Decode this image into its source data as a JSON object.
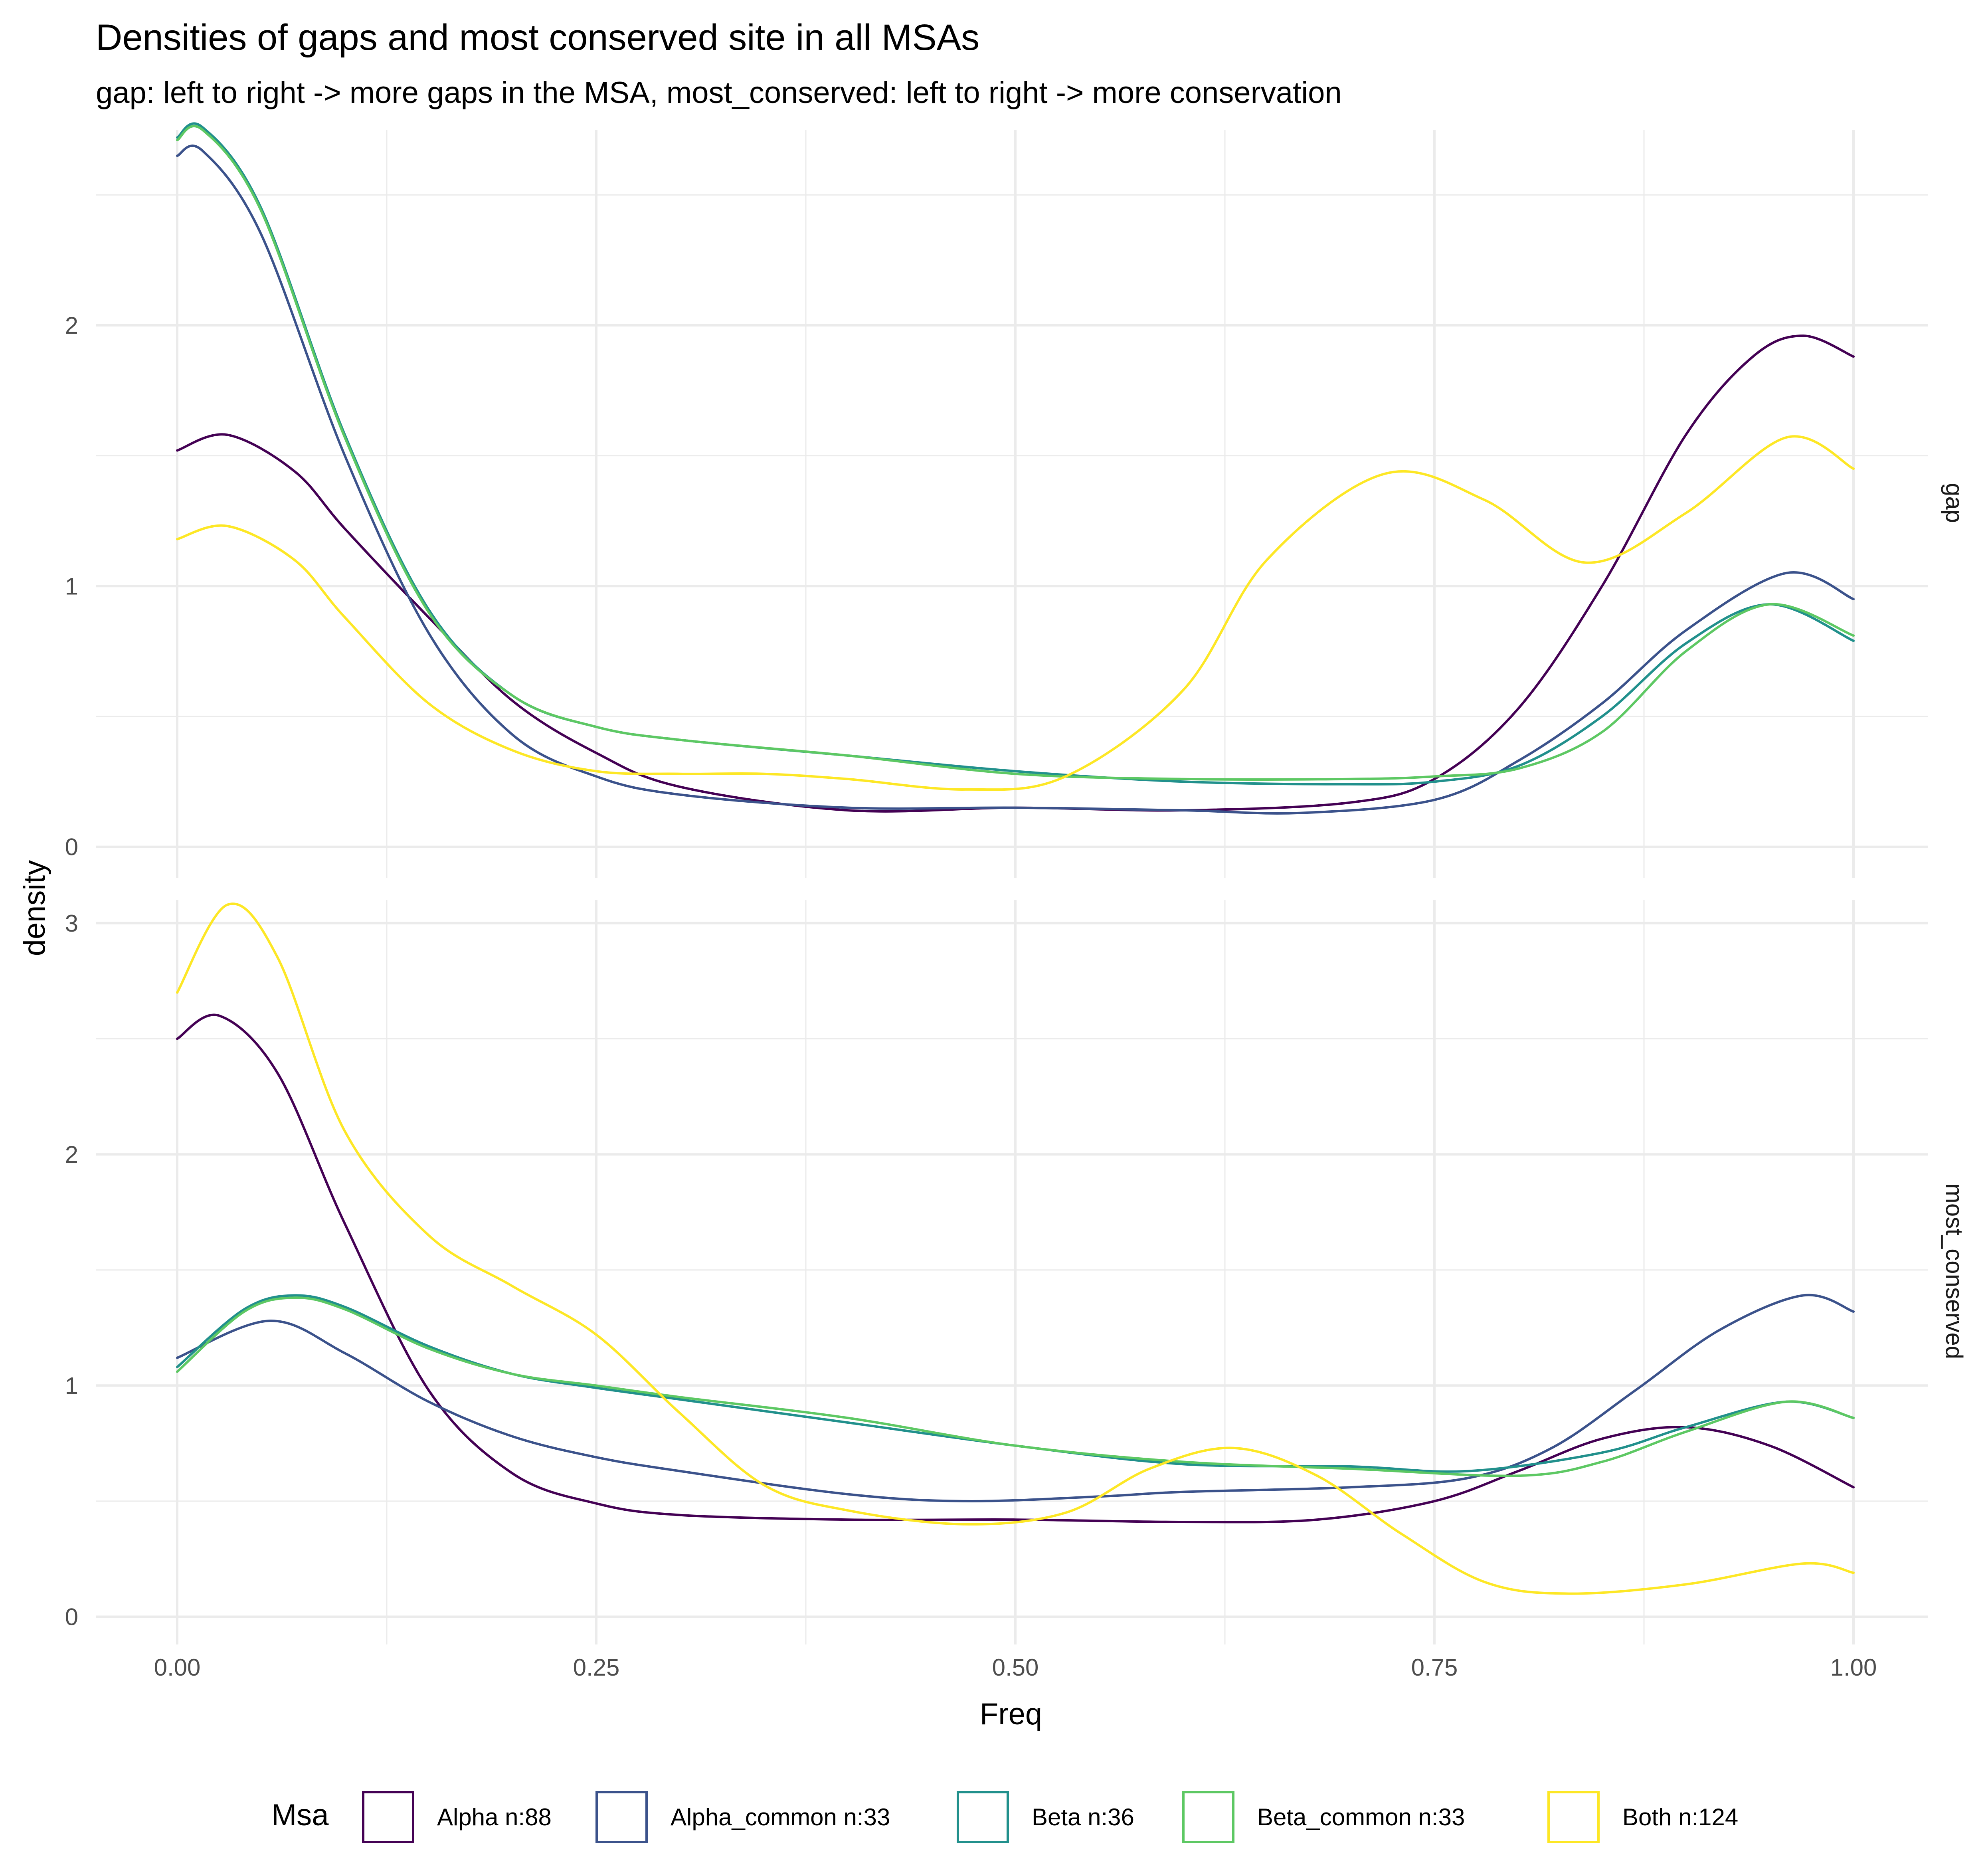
{
  "chart_data": {
    "type": "line",
    "title": "Densities of gaps and most conserved site in all MSAs",
    "subtitle": "gap: left to right -> more gaps in the MSA, most_conserved: left to right -> more conservation",
    "xlabel": "Freq",
    "ylabel": "density",
    "xlim": [
      0,
      1
    ],
    "x_ticks": [
      "0.00",
      "0.25",
      "0.50",
      "0.75",
      "1.00"
    ],
    "grid": true,
    "legend": {
      "title": "Msa",
      "position": "bottom",
      "entries": [
        "Alpha n:88",
        "Alpha_common n:33",
        "Beta n:36",
        "Beta_common n:33",
        "Both n:124"
      ]
    },
    "colors": {
      "Alpha n:88": "#440154",
      "Alpha_common n:33": "#3b528b",
      "Beta n:36": "#21908c",
      "Beta_common n:33": "#5dc863",
      "Both n:124": "#fde725"
    },
    "panels": [
      {
        "strip": "gap",
        "ylim": [
          -0.12,
          2.75
        ],
        "y_ticks": [
          0,
          1,
          2
        ],
        "series": [
          {
            "name": "Alpha n:88",
            "x": [
              0,
              0.03,
              0.07,
              0.1,
              0.15,
              0.2,
              0.25,
              0.3,
              0.4,
              0.5,
              0.6,
              0.7,
              0.75,
              0.8,
              0.85,
              0.9,
              0.94,
              0.97,
              1.0
            ],
            "y": [
              1.52,
              1.58,
              1.44,
              1.22,
              0.88,
              0.56,
              0.36,
              0.23,
              0.14,
              0.15,
              0.14,
              0.17,
              0.26,
              0.53,
              1.0,
              1.58,
              1.88,
              1.96,
              1.88
            ]
          },
          {
            "name": "Alpha_common n:33",
            "x": [
              0,
              0.015,
              0.05,
              0.1,
              0.15,
              0.2,
              0.25,
              0.3,
              0.4,
              0.5,
              0.6,
              0.67,
              0.75,
              0.8,
              0.85,
              0.9,
              0.96,
              1.0
            ],
            "y": [
              2.65,
              2.67,
              2.35,
              1.5,
              0.82,
              0.43,
              0.27,
              0.2,
              0.15,
              0.15,
              0.14,
              0.13,
              0.18,
              0.33,
              0.55,
              0.83,
              1.05,
              0.95
            ]
          },
          {
            "name": "Beta n:36",
            "x": [
              0,
              0.015,
              0.05,
              0.1,
              0.15,
              0.2,
              0.25,
              0.3,
              0.4,
              0.5,
              0.6,
              0.7,
              0.75,
              0.8,
              0.85,
              0.9,
              0.95,
              1.0
            ],
            "y": [
              2.72,
              2.76,
              2.45,
              1.58,
              0.91,
              0.58,
              0.46,
              0.41,
              0.35,
              0.29,
              0.25,
              0.24,
              0.25,
              0.31,
              0.5,
              0.78,
              0.93,
              0.79
            ]
          },
          {
            "name": "Beta_common n:33",
            "x": [
              0,
              0.015,
              0.05,
              0.1,
              0.15,
              0.2,
              0.25,
              0.3,
              0.4,
              0.5,
              0.6,
              0.7,
              0.75,
              0.8,
              0.85,
              0.9,
              0.95,
              1.0
            ],
            "y": [
              2.71,
              2.75,
              2.44,
              1.57,
              0.9,
              0.58,
              0.46,
              0.41,
              0.35,
              0.28,
              0.26,
              0.26,
              0.27,
              0.3,
              0.44,
              0.75,
              0.93,
              0.81
            ]
          },
          {
            "name": "Both n:124",
            "x": [
              0,
              0.03,
              0.07,
              0.1,
              0.15,
              0.2,
              0.25,
              0.3,
              0.35,
              0.4,
              0.47,
              0.53,
              0.6,
              0.65,
              0.72,
              0.78,
              0.84,
              0.9,
              0.96,
              1.0
            ],
            "y": [
              1.18,
              1.23,
              1.1,
              0.88,
              0.55,
              0.37,
              0.29,
              0.28,
              0.28,
              0.26,
              0.22,
              0.27,
              0.6,
              1.1,
              1.43,
              1.33,
              1.09,
              1.28,
              1.57,
              1.45
            ]
          }
        ]
      },
      {
        "strip": "most_conserved",
        "ylim": [
          -0.12,
          3.1
        ],
        "y_ticks": [
          0,
          1,
          2,
          3
        ],
        "series": [
          {
            "name": "Alpha n:88",
            "x": [
              0,
              0.025,
              0.06,
              0.1,
              0.15,
              0.2,
              0.25,
              0.3,
              0.4,
              0.5,
              0.6,
              0.68,
              0.75,
              0.8,
              0.85,
              0.9,
              0.95,
              1.0
            ],
            "y": [
              2.5,
              2.6,
              2.35,
              1.7,
              0.98,
              0.62,
              0.49,
              0.44,
              0.42,
              0.42,
              0.41,
              0.42,
              0.5,
              0.63,
              0.77,
              0.82,
              0.74,
              0.56
            ]
          },
          {
            "name": "Alpha_common n:33",
            "x": [
              0,
              0.055,
              0.1,
              0.15,
              0.2,
              0.25,
              0.3,
              0.4,
              0.47,
              0.55,
              0.6,
              0.7,
              0.77,
              0.82,
              0.87,
              0.92,
              0.97,
              1.0
            ],
            "y": [
              1.12,
              1.28,
              1.14,
              0.93,
              0.78,
              0.69,
              0.63,
              0.53,
              0.5,
              0.52,
              0.54,
              0.56,
              0.6,
              0.73,
              0.98,
              1.24,
              1.39,
              1.32
            ]
          },
          {
            "name": "Beta n:36",
            "x": [
              0,
              0.04,
              0.07,
              0.1,
              0.15,
              0.2,
              0.25,
              0.3,
              0.4,
              0.5,
              0.6,
              0.7,
              0.77,
              0.85,
              0.9,
              0.96,
              1.0
            ],
            "y": [
              1.08,
              1.33,
              1.39,
              1.34,
              1.17,
              1.05,
              0.99,
              0.94,
              0.84,
              0.74,
              0.66,
              0.65,
              0.63,
              0.71,
              0.82,
              0.93,
              0.86
            ]
          },
          {
            "name": "Beta_common n:33",
            "x": [
              0,
              0.04,
              0.07,
              0.1,
              0.15,
              0.2,
              0.25,
              0.3,
              0.4,
              0.5,
              0.6,
              0.7,
              0.8,
              0.85,
              0.9,
              0.96,
              1.0
            ],
            "y": [
              1.06,
              1.32,
              1.38,
              1.33,
              1.16,
              1.05,
              1.0,
              0.95,
              0.86,
              0.74,
              0.67,
              0.64,
              0.61,
              0.67,
              0.8,
              0.93,
              0.86
            ]
          },
          {
            "name": "Both n:124",
            "x": [
              0,
              0.03,
              0.06,
              0.1,
              0.15,
              0.2,
              0.25,
              0.3,
              0.35,
              0.4,
              0.47,
              0.53,
              0.58,
              0.63,
              0.68,
              0.73,
              0.78,
              0.83,
              0.9,
              0.97,
              1.0
            ],
            "y": [
              2.7,
              3.08,
              2.85,
              2.1,
              1.65,
              1.43,
              1.22,
              0.88,
              0.57,
              0.46,
              0.4,
              0.45,
              0.64,
              0.73,
              0.61,
              0.36,
              0.15,
              0.1,
              0.14,
              0.23,
              0.19
            ]
          }
        ]
      }
    ]
  }
}
